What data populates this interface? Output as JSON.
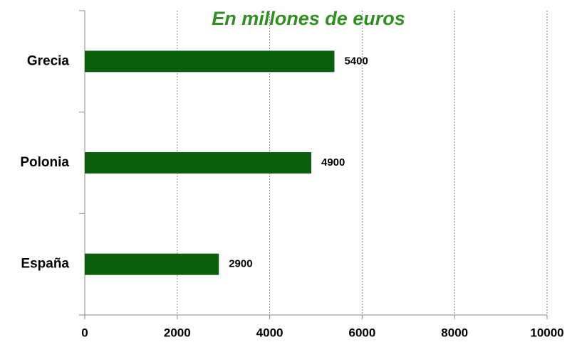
{
  "chart_data": {
    "type": "bar",
    "orientation": "horizontal",
    "title": "En millones de euros",
    "categories": [
      "Grecia",
      "Polonia",
      "España"
    ],
    "values": [
      5400,
      4900,
      2900
    ],
    "color": "#0b5e0b",
    "xlim": [
      0,
      10000
    ],
    "xticks": [
      0,
      2000,
      4000,
      6000,
      8000,
      10000
    ],
    "grid": true
  }
}
